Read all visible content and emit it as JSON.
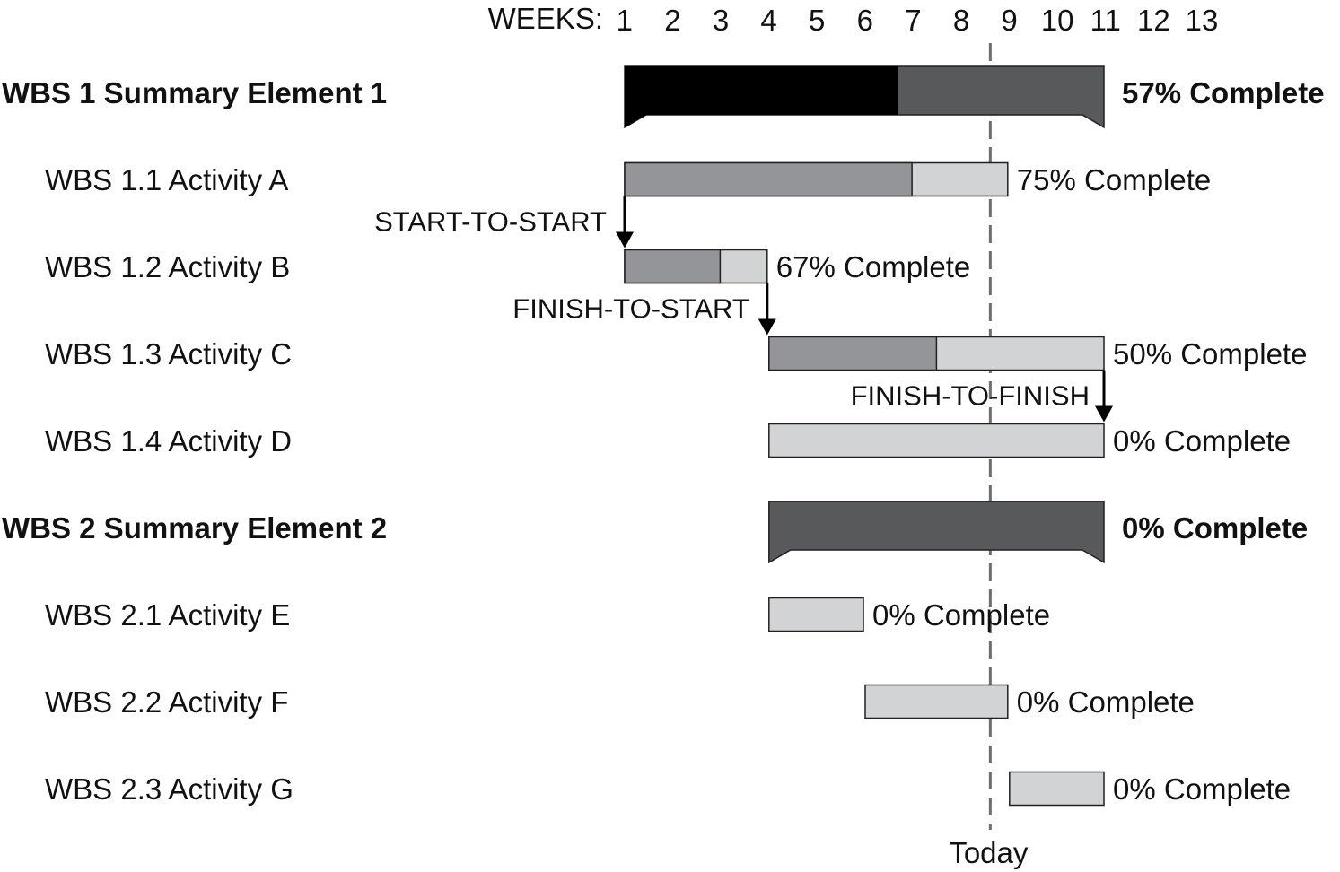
{
  "chart_data": {
    "type": "gantt",
    "xlabel": "WEEKS:",
    "weeks": [
      1,
      2,
      3,
      4,
      5,
      6,
      7,
      8,
      9,
      10,
      11,
      12,
      13
    ],
    "today_label": "Today",
    "today_week": 8.6,
    "colors": {
      "summary_done": "#000000",
      "summary_remaining": "#58595b",
      "task_done": "#939598",
      "task_remaining": "#d1d3d4",
      "outline": "#231f20",
      "today_line": "#6d6e71"
    },
    "rows": [
      {
        "id": "wbs1",
        "label": "WBS 1 Summary Element 1",
        "summary": true,
        "start": 1,
        "end": 11,
        "percent": 57,
        "percent_label": "57% Complete"
      },
      {
        "id": "wbs1-1",
        "label": "WBS 1.1 Activity A",
        "summary": false,
        "start": 1,
        "end": 9,
        "percent": 75,
        "percent_label": "75% Complete"
      },
      {
        "id": "wbs1-2",
        "label": "WBS 1.2 Activity B",
        "summary": false,
        "start": 1,
        "end": 4,
        "percent": 67,
        "percent_label": "67% Complete"
      },
      {
        "id": "wbs1-3",
        "label": "WBS 1.3 Activity C",
        "summary": false,
        "start": 4,
        "end": 11,
        "percent": 50,
        "percent_label": "50% Complete"
      },
      {
        "id": "wbs1-4",
        "label": "WBS 1.4 Activity D",
        "summary": false,
        "start": 4,
        "end": 11,
        "percent": 0,
        "percent_label": "0% Complete"
      },
      {
        "id": "wbs2",
        "label": "WBS 2 Summary Element 2",
        "summary": true,
        "start": 4,
        "end": 11,
        "percent": 0,
        "percent_label": "0% Complete"
      },
      {
        "id": "wbs2-1",
        "label": "WBS 2.1 Activity E",
        "summary": false,
        "start": 4,
        "end": 6,
        "percent": 0,
        "percent_label": "0% Complete"
      },
      {
        "id": "wbs2-2",
        "label": "WBS 2.2 Activity F",
        "summary": false,
        "start": 6,
        "end": 9,
        "percent": 0,
        "percent_label": "0% Complete"
      },
      {
        "id": "wbs2-3",
        "label": "WBS 2.3 Activity G",
        "summary": false,
        "start": 9,
        "end": 11,
        "percent": 0,
        "percent_label": "0% Complete"
      }
    ],
    "dependencies": [
      {
        "type": "START-TO-START",
        "label": "START-TO-START",
        "from": "wbs1-1",
        "to": "wbs1-2"
      },
      {
        "type": "FINISH-TO-START",
        "label": "FINISH-TO-START",
        "from": "wbs1-2",
        "to": "wbs1-3"
      },
      {
        "type": "FINISH-TO-FINISH",
        "label": "FINISH-TO-FINISH",
        "from": "wbs1-3",
        "to": "wbs1-4"
      }
    ]
  }
}
